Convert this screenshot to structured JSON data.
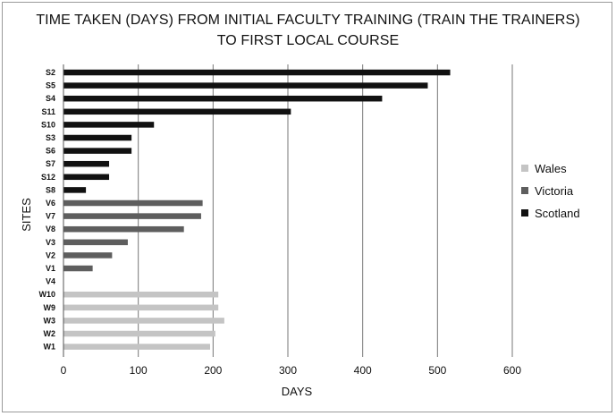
{
  "chart_data": {
    "type": "bar",
    "orientation": "horizontal",
    "title_lines": [
      "TIME TAKEN (DAYS) FROM INITIAL FACULTY TRAINING (TRAIN THE TRAINERS)",
      "TO FIRST LOCAL COURSE"
    ],
    "xlabel": "DAYS",
    "ylabel": "SITES",
    "xlim": [
      0,
      600
    ],
    "xticks": [
      0,
      100,
      200,
      300,
      400,
      500,
      600
    ],
    "grid": "vertical",
    "legend_position": "right",
    "legend": [
      {
        "name": "Wales",
        "color": "#c4c4c4"
      },
      {
        "name": "Victoria",
        "color": "#5e5e5e"
      },
      {
        "name": "Scotland",
        "color": "#111111"
      }
    ],
    "bars": [
      {
        "site": "S2",
        "group": "Scotland",
        "value": 517
      },
      {
        "site": "S5",
        "group": "Scotland",
        "value": 487
      },
      {
        "site": "S4",
        "group": "Scotland",
        "value": 426
      },
      {
        "site": "S11",
        "group": "Scotland",
        "value": 304
      },
      {
        "site": "S10",
        "group": "Scotland",
        "value": 121
      },
      {
        "site": "S3",
        "group": "Scotland",
        "value": 91
      },
      {
        "site": "S6",
        "group": "Scotland",
        "value": 91
      },
      {
        "site": "S7",
        "group": "Scotland",
        "value": 61
      },
      {
        "site": "S12",
        "group": "Scotland",
        "value": 61
      },
      {
        "site": "S8",
        "group": "Scotland",
        "value": 30
      },
      {
        "site": "V6",
        "group": "Victoria",
        "value": 186
      },
      {
        "site": "V7",
        "group": "Victoria",
        "value": 184
      },
      {
        "site": "V8",
        "group": "Victoria",
        "value": 161
      },
      {
        "site": "V3",
        "group": "Victoria",
        "value": 86
      },
      {
        "site": "V2",
        "group": "Victoria",
        "value": 65
      },
      {
        "site": "V1",
        "group": "Victoria",
        "value": 39
      },
      {
        "site": "V4",
        "group": "Victoria",
        "value": 0
      },
      {
        "site": "W10",
        "group": "Wales",
        "value": 207
      },
      {
        "site": "W9",
        "group": "Wales",
        "value": 207
      },
      {
        "site": "W3",
        "group": "Wales",
        "value": 215
      },
      {
        "site": "W2",
        "group": "Wales",
        "value": 203
      },
      {
        "site": "W1",
        "group": "Wales",
        "value": 196
      }
    ]
  }
}
